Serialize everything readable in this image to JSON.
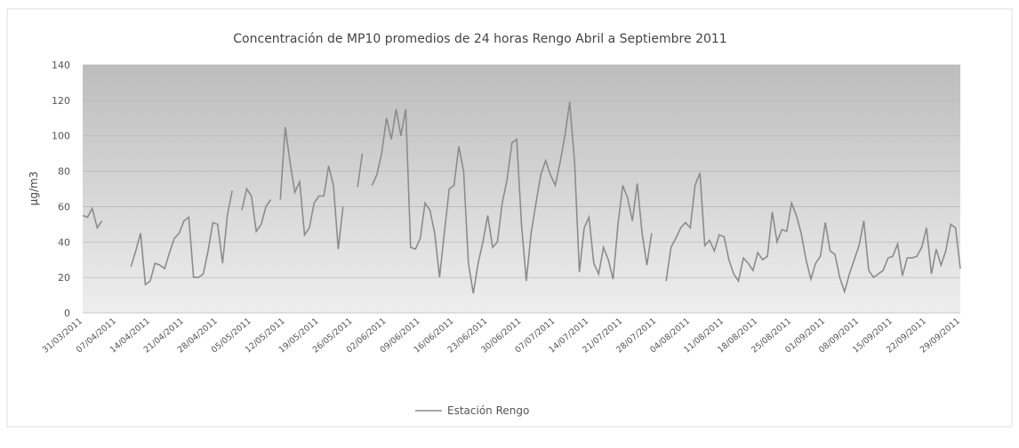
{
  "chart_data": {
    "type": "line",
    "title": "Concentración de MP10 promedios de 24 horas Rengo Abril a Septiembre 2011",
    "y_label": "µg/m3",
    "categories": [
      "31/03/2011",
      null,
      null,
      null,
      null,
      null,
      null,
      "07/04/2011",
      null,
      null,
      null,
      null,
      null,
      null,
      "14/04/2011",
      null,
      null,
      null,
      null,
      null,
      null,
      "21/04/2011",
      null,
      null,
      null,
      null,
      null,
      null,
      "28/04/2011",
      null,
      null,
      null,
      null,
      null,
      null,
      "05/05/2011",
      null,
      null,
      null,
      null,
      null,
      null,
      "12/05/2011",
      null,
      null,
      null,
      null,
      null,
      null,
      "19/05/2011",
      null,
      null,
      null,
      null,
      null,
      null,
      "26/05/2011",
      null,
      null,
      null,
      null,
      null,
      null,
      "02/06/2011",
      null,
      null,
      null,
      null,
      null,
      null,
      "09/06/2011",
      null,
      null,
      null,
      null,
      null,
      null,
      "16/06/2011",
      null,
      null,
      null,
      null,
      null,
      null,
      "23/06/2011",
      null,
      null,
      null,
      null,
      null,
      null,
      "30/06/2011",
      null,
      null,
      null,
      null,
      null,
      null,
      "07/07/2011",
      null,
      null,
      null,
      null,
      null,
      null,
      "14/07/2011",
      null,
      null,
      null,
      null,
      null,
      null,
      "21/07/2011",
      null,
      null,
      null,
      null,
      null,
      null,
      "28/07/2011",
      null,
      null,
      null,
      null,
      null,
      null,
      "04/08/2011",
      null,
      null,
      null,
      null,
      null,
      null,
      "11/08/2011",
      null,
      null,
      null,
      null,
      null,
      null,
      "18/08/2011",
      null,
      null,
      null,
      null,
      null,
      null,
      "25/08/2011",
      null,
      null,
      null,
      null,
      null,
      null,
      "01/09/2011",
      null,
      null,
      null,
      null,
      null,
      null,
      "08/09/2011",
      null,
      null,
      null,
      null,
      null,
      null,
      "15/09/2011",
      null,
      null,
      null,
      null,
      null,
      null,
      "22/09/2011",
      null,
      null,
      null,
      null,
      null,
      null,
      "29/09/2011"
    ],
    "series": [
      {
        "name": "Estación Rengo",
        "color": "#8c8c8c",
        "values": [
          55,
          54,
          59,
          48,
          52,
          null,
          null,
          null,
          null,
          null,
          26,
          35,
          45,
          16,
          18,
          28,
          27,
          25,
          34,
          42,
          45,
          52,
          54,
          20,
          20,
          22,
          35,
          51,
          50,
          28,
          55,
          69,
          null,
          58,
          70,
          66,
          46,
          50,
          60,
          64,
          null,
          64,
          105,
          85,
          68,
          74,
          44,
          48,
          62,
          66,
          66,
          83,
          72,
          36,
          60,
          null,
          null,
          71,
          90,
          null,
          72,
          78,
          90,
          110,
          98,
          115,
          100,
          115,
          37,
          36,
          42,
          62,
          58,
          45,
          20,
          45,
          70,
          72,
          94,
          80,
          28,
          11,
          28,
          40,
          55,
          37,
          40,
          62,
          75,
          96,
          98,
          50,
          18,
          45,
          62,
          78,
          86,
          78,
          72,
          85,
          100,
          119,
          85,
          23,
          48,
          54,
          28,
          22,
          37,
          30,
          19,
          50,
          72,
          65,
          52,
          73,
          45,
          27,
          45,
          null,
          null,
          18,
          37,
          42,
          48,
          51,
          48,
          72,
          79,
          38,
          41,
          35,
          44,
          43,
          30,
          22,
          18,
          31,
          28,
          24,
          34,
          30,
          32,
          57,
          40,
          47,
          46,
          62,
          55,
          45,
          30,
          19,
          28,
          32,
          51,
          35,
          33,
          20,
          12,
          22,
          30,
          38,
          52,
          24,
          20,
          22,
          24,
          31,
          32,
          39,
          21,
          31,
          31,
          32,
          37,
          48,
          22,
          36,
          27,
          35,
          50,
          48,
          25
        ]
      }
    ],
    "ylim": [
      0,
      140
    ],
    "yticks": [
      0,
      20,
      40,
      60,
      80,
      100,
      120,
      140
    ],
    "grid": true,
    "legend": "bottom"
  }
}
